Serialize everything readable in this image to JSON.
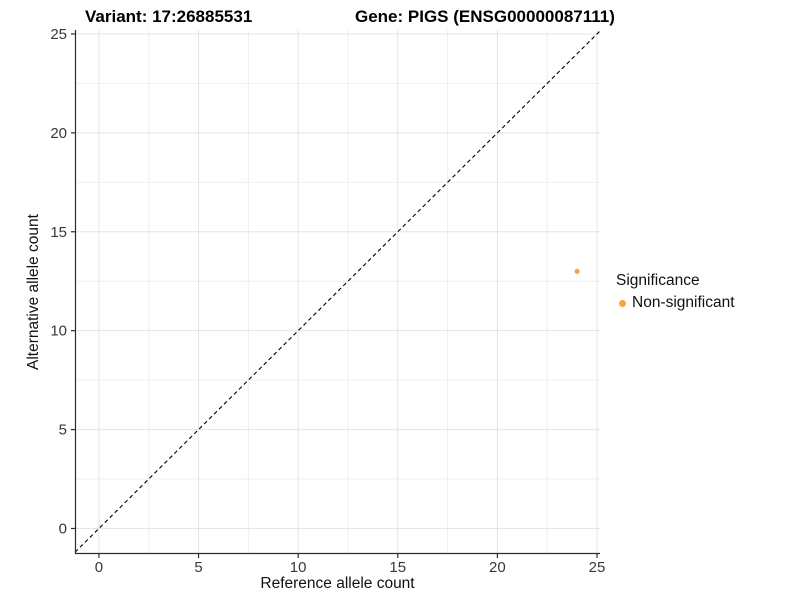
{
  "titles": {
    "variant": "Variant: 17:26885531",
    "gene": "Gene: PIGS (ENSG00000087111)"
  },
  "chart_data": {
    "type": "scatter",
    "title": "Variant: 17:26885531 | Gene: PIGS (ENSG00000087111)",
    "xlabel": "Reference allele count",
    "ylabel": "Alternative allele count",
    "xlim": [
      -1.2,
      25.15
    ],
    "ylim": [
      -1.29,
      25.2
    ],
    "xticks": [
      0,
      5,
      10,
      15,
      20,
      25
    ],
    "yticks": [
      0,
      5,
      10,
      15,
      20,
      25
    ],
    "minor_ticks": [
      2.5,
      7.5,
      12.5,
      17.5,
      22.5
    ],
    "grid": true,
    "identity_line": {
      "type": "abline",
      "slope": 1,
      "intercept": 0,
      "style": "dashed",
      "color": "#000000"
    },
    "series": [
      {
        "name": "Non-significant",
        "color": "#FAA43A",
        "points": [
          {
            "x": 24,
            "y": 13
          }
        ]
      }
    ],
    "legend": {
      "position": "right",
      "title": "Significance",
      "items": [
        {
          "label": "Non-significant",
          "color": "#FAA43A"
        }
      ]
    },
    "colors": {
      "grid_major": "#e5e5e5",
      "grid_minor": "#efefef",
      "axis_line": "#2b2b2b",
      "tick_mark": "#2b2b2b"
    }
  }
}
